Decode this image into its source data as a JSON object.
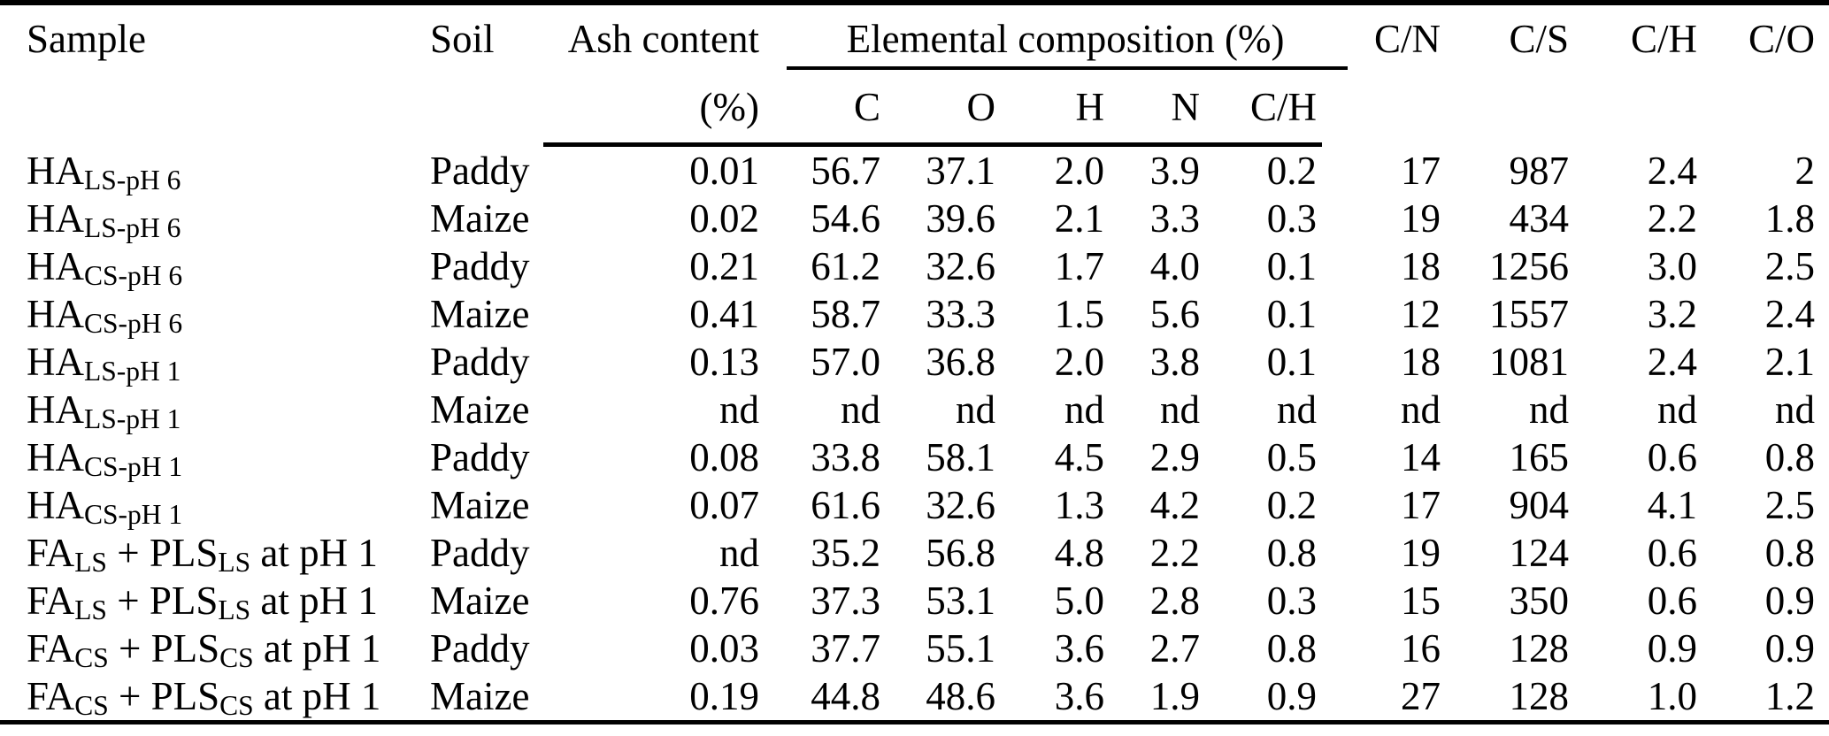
{
  "colors": {
    "background": "#ffffff",
    "text": "#000000",
    "rule": "#000000"
  },
  "table": {
    "header": {
      "sample": "Sample",
      "soil": "Soil",
      "ash_line1": "Ash content",
      "ash_line2": "(%)",
      "elemental_group": "Elemental composition (%)",
      "elemental_subcols": [
        "C",
        "O",
        "H",
        "N",
        "C/H"
      ],
      "ratio_cols": [
        "C/N",
        "C/S",
        "C/H",
        "C/O"
      ]
    },
    "rows": [
      {
        "sample_parts": [
          {
            "text": "HA"
          },
          {
            "sub": "LS-pH 6"
          }
        ],
        "soil": "Paddy",
        "values": [
          "0.01",
          "56.7",
          "37.1",
          "2.0",
          "3.9",
          "0.2",
          "17",
          "987",
          "2.4",
          "2"
        ]
      },
      {
        "sample_parts": [
          {
            "text": "HA"
          },
          {
            "sub": "LS-pH 6"
          }
        ],
        "soil": "Maize",
        "values": [
          "0.02",
          "54.6",
          "39.6",
          "2.1",
          "3.3",
          "0.3",
          "19",
          "434",
          "2.2",
          "1.8"
        ]
      },
      {
        "sample_parts": [
          {
            "text": "HA"
          },
          {
            "sub": "CS-pH 6"
          }
        ],
        "soil": "Paddy",
        "values": [
          "0.21",
          "61.2",
          "32.6",
          "1.7",
          "4.0",
          "0.1",
          "18",
          "1256",
          "3.0",
          "2.5"
        ]
      },
      {
        "sample_parts": [
          {
            "text": "HA"
          },
          {
            "sub": "CS-pH 6"
          }
        ],
        "soil": "Maize",
        "values": [
          "0.41",
          "58.7",
          "33.3",
          "1.5",
          "5.6",
          "0.1",
          "12",
          "1557",
          "3.2",
          "2.4"
        ]
      },
      {
        "sample_parts": [
          {
            "text": "HA"
          },
          {
            "sub": "LS-pH 1"
          }
        ],
        "soil": "Paddy",
        "values": [
          "0.13",
          "57.0",
          "36.8",
          "2.0",
          "3.8",
          "0.1",
          "18",
          "1081",
          "2.4",
          "2.1"
        ]
      },
      {
        "sample_parts": [
          {
            "text": "HA"
          },
          {
            "sub": "LS-pH 1"
          }
        ],
        "soil": "Maize",
        "values": [
          "nd",
          "nd",
          "nd",
          "nd",
          "nd",
          "nd",
          "nd",
          "nd",
          "nd",
          "nd"
        ]
      },
      {
        "sample_parts": [
          {
            "text": "HA"
          },
          {
            "sub": "CS-pH 1"
          }
        ],
        "soil": "Paddy",
        "values": [
          "0.08",
          "33.8",
          "58.1",
          "4.5",
          "2.9",
          "0.5",
          "14",
          "165",
          "0.6",
          "0.8"
        ]
      },
      {
        "sample_parts": [
          {
            "text": "HA"
          },
          {
            "sub": "CS-pH 1"
          }
        ],
        "soil": "Maize",
        "values": [
          "0.07",
          "61.6",
          "32.6",
          "1.3",
          "4.2",
          "0.2",
          "17",
          "904",
          "4.1",
          "2.5"
        ]
      },
      {
        "sample_parts": [
          {
            "text": "FA"
          },
          {
            "sub": "LS"
          },
          {
            "text": " + PLS"
          },
          {
            "sub": "LS"
          },
          {
            "text": " at pH 1"
          }
        ],
        "soil": "Paddy",
        "values": [
          "nd",
          "35.2",
          "56.8",
          "4.8",
          "2.2",
          "0.8",
          "19",
          "124",
          "0.6",
          "0.8"
        ]
      },
      {
        "sample_parts": [
          {
            "text": "FA"
          },
          {
            "sub": "LS"
          },
          {
            "text": " + PLS"
          },
          {
            "sub": "LS"
          },
          {
            "text": " at pH 1"
          }
        ],
        "soil": "Maize",
        "values": [
          "0.76",
          "37.3",
          "53.1",
          "5.0",
          "2.8",
          "0.3",
          "15",
          "350",
          "0.6",
          "0.9"
        ]
      },
      {
        "sample_parts": [
          {
            "text": "FA"
          },
          {
            "sub": "CS"
          },
          {
            "text": " + PLS"
          },
          {
            "sub": "CS"
          },
          {
            "text": " at pH 1"
          }
        ],
        "soil": "Paddy",
        "values": [
          "0.03",
          "37.7",
          "55.1",
          "3.6",
          "2.7",
          "0.8",
          "16",
          "128",
          "0.9",
          "0.9"
        ]
      },
      {
        "sample_parts": [
          {
            "text": "FA"
          },
          {
            "sub": "CS"
          },
          {
            "text": " + PLS"
          },
          {
            "sub": "CS"
          },
          {
            "text": " at pH 1"
          }
        ],
        "soil": "Maize",
        "values": [
          "0.19",
          "44.8",
          "48.6",
          "3.6",
          "1.9",
          "0.9",
          "27",
          "128",
          "1.0",
          "1.2"
        ]
      }
    ]
  }
}
